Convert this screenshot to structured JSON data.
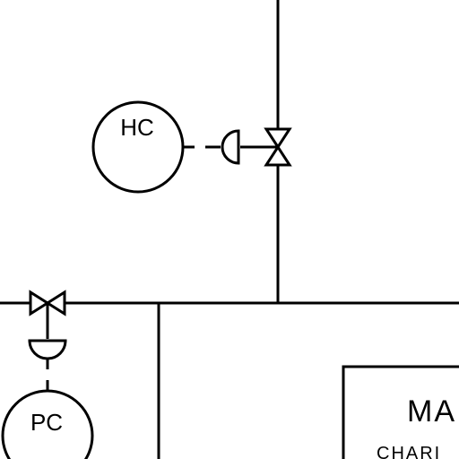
{
  "instruments": {
    "hc_label": "HC",
    "pc_label": "PC"
  },
  "equipment": {
    "title_fragment": "MA",
    "subtitle_fragment": "CHARI"
  }
}
